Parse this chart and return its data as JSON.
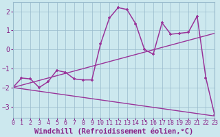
{
  "xlabel": "Windchill (Refroidissement éolien,°C)",
  "bg_color": "#cce8ee",
  "line_color": "#993399",
  "xlim": [
    0,
    23
  ],
  "ylim": [
    -3.6,
    2.5
  ],
  "yticks": [
    -3,
    -2,
    -1,
    0,
    1,
    2
  ],
  "xticks": [
    0,
    1,
    2,
    3,
    4,
    5,
    6,
    7,
    8,
    9,
    10,
    11,
    12,
    13,
    14,
    15,
    16,
    17,
    18,
    19,
    20,
    21,
    22,
    23
  ],
  "series": [
    {
      "x": [
        0,
        23
      ],
      "y": [
        -2.0,
        0.85
      ],
      "marker": null,
      "linestyle": "-",
      "linewidth": 1.0
    },
    {
      "x": [
        0,
        23
      ],
      "y": [
        -2.0,
        -3.5
      ],
      "marker": null,
      "linestyle": "-",
      "linewidth": 1.0
    },
    {
      "x": [
        0,
        1,
        2,
        3,
        4,
        5,
        6,
        7,
        8,
        9,
        10,
        11,
        12,
        13,
        14,
        15,
        16,
        17,
        18,
        19,
        20,
        21,
        22,
        23
      ],
      "y": [
        -2.0,
        -1.5,
        -1.55,
        -2.0,
        -1.7,
        -1.1,
        -1.2,
        -1.55,
        -1.6,
        -1.6,
        0.3,
        1.65,
        2.2,
        2.1,
        1.35,
        0.0,
        -0.25,
        1.4,
        0.8,
        0.85,
        0.9,
        1.75,
        -1.5,
        -3.45
      ],
      "marker": "+",
      "linestyle": "-",
      "linewidth": 1.1
    }
  ],
  "grid_color": "#99bbcc",
  "font_color": "#882288",
  "tick_fontsize": 6,
  "label_fontsize": 7.5
}
